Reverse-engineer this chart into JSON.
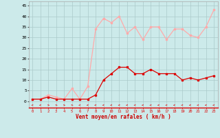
{
  "x": [
    0,
    1,
    2,
    3,
    4,
    5,
    6,
    7,
    8,
    9,
    10,
    11,
    12,
    13,
    14,
    15,
    16,
    17,
    18,
    19,
    20,
    21,
    22,
    23
  ],
  "avg_wind": [
    1,
    1,
    2,
    1,
    1,
    1,
    1,
    1,
    3,
    10,
    13,
    16,
    16,
    13,
    13,
    15,
    13,
    13,
    13,
    10,
    11,
    10,
    11,
    12
  ],
  "gusts": [
    1,
    1,
    3,
    2,
    1,
    6,
    1,
    7,
    34,
    39,
    37,
    40,
    32,
    35,
    29,
    35,
    35,
    29,
    34,
    34,
    31,
    30,
    35,
    43
  ],
  "bg_color": "#cceaea",
  "grid_color": "#aacaca",
  "avg_color": "#dd0000",
  "gust_color": "#ffaaaa",
  "xlabel": "Vent moyen/en rafales ( km/h )",
  "xlabel_color": "#cc0000",
  "yticks": [
    0,
    5,
    10,
    15,
    20,
    25,
    30,
    35,
    40,
    45
  ],
  "ylim": [
    -3,
    47
  ],
  "xlim": [
    -0.5,
    23.5
  ]
}
